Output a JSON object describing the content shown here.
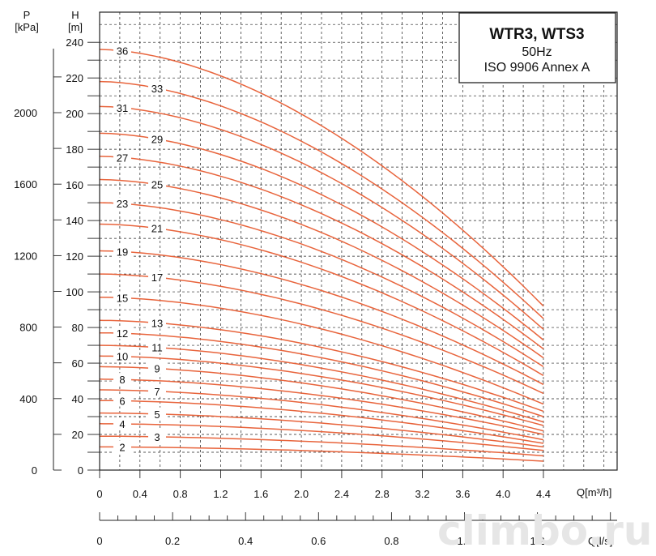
{
  "chart_data": {
    "type": "line",
    "title": "WTR3, WTS3",
    "subtitle_1": "50Hz",
    "subtitle_2": "ISO 9906  Annex A",
    "watermark": "climbo.ru",
    "axes": {
      "p_label": "P",
      "p_unit": "[kPa]",
      "h_label": "H",
      "h_unit": "[m]",
      "q_m3h_label": "Q[m³/h]",
      "q_ls_label": "Q[l/s]"
    },
    "xlim_m3h": [
      0,
      4.4
    ],
    "ylim_h": [
      0,
      240
    ],
    "h_ticks": [
      "0",
      "20",
      "40",
      "60",
      "80",
      "100",
      "120",
      "140",
      "160",
      "180",
      "200",
      "220",
      "240"
    ],
    "p_ticks": [
      "0",
      "400",
      "800",
      "1200",
      "1600",
      "2000"
    ],
    "q_m3h_ticks": [
      "0",
      "0.4",
      "0.8",
      "1.2",
      "1.6",
      "2.0",
      "2.4",
      "2.8",
      "3.2",
      "3.6",
      "4.0",
      "4.4"
    ],
    "q_ls_ticks": [
      "0",
      "0.2",
      "0.4",
      "0.6",
      "0.8",
      "1.0",
      "1.2"
    ],
    "grid": true,
    "curve_color": "#e8643c",
    "series": [
      {
        "name": "36",
        "h_at_0": 236,
        "h_at_max": 92
      },
      {
        "name": "33",
        "h_at_0": 218,
        "h_at_max": 85
      },
      {
        "name": "31",
        "h_at_0": 204,
        "h_at_max": 79
      },
      {
        "name": "29",
        "h_at_0": 189,
        "h_at_max": 73
      },
      {
        "name": "27",
        "h_at_0": 176,
        "h_at_max": 68
      },
      {
        "name": "25",
        "h_at_0": 163,
        "h_at_max": 63
      },
      {
        "name": "23",
        "h_at_0": 150,
        "h_at_max": 58
      },
      {
        "name": "21",
        "h_at_0": 138,
        "h_at_max": 53
      },
      {
        "name": "19",
        "h_at_0": 123,
        "h_at_max": 48
      },
      {
        "name": "17",
        "h_at_0": 110,
        "h_at_max": 43
      },
      {
        "name": "15",
        "h_at_0": 97,
        "h_at_max": 37
      },
      {
        "name": "13",
        "h_at_0": 84,
        "h_at_max": 33
      },
      {
        "name": "12",
        "h_at_0": 77,
        "h_at_max": 30
      },
      {
        "name": "11",
        "h_at_0": 70,
        "h_at_max": 27
      },
      {
        "name": "10",
        "h_at_0": 64,
        "h_at_max": 25
      },
      {
        "name": "9",
        "h_at_0": 58,
        "h_at_max": 22
      },
      {
        "name": "8",
        "h_at_0": 51,
        "h_at_max": 20
      },
      {
        "name": "7",
        "h_at_0": 45,
        "h_at_max": 17
      },
      {
        "name": "6",
        "h_at_0": 39,
        "h_at_max": 15
      },
      {
        "name": "5",
        "h_at_0": 32,
        "h_at_max": 13
      },
      {
        "name": "4",
        "h_at_0": 26,
        "h_at_max": 11
      },
      {
        "name": "3",
        "h_at_0": 19,
        "h_at_max": 8
      },
      {
        "name": "2",
        "h_at_0": 13,
        "h_at_max": 5
      }
    ]
  }
}
